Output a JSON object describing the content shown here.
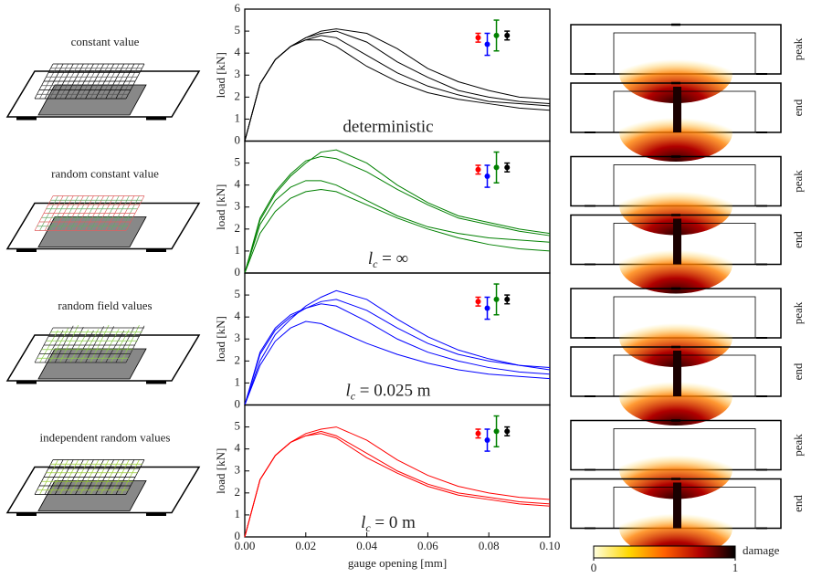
{
  "chart_data": [
    {
      "type": "line",
      "title": "constant value",
      "annotation_parts": [
        "deterministic"
      ],
      "ylabel": "load [kN]",
      "xlim": [
        0,
        0.1
      ],
      "ylim": [
        0,
        6
      ],
      "yticks": [
        0,
        1,
        2,
        3,
        4,
        5,
        6
      ],
      "x": [
        0,
        0.005,
        0.01,
        0.015,
        0.02,
        0.025,
        0.03,
        0.04,
        0.05,
        0.06,
        0.07,
        0.08,
        0.09,
        0.1
      ],
      "series": [
        {
          "color": "#000000",
          "values": [
            0,
            2.6,
            3.7,
            4.3,
            4.6,
            4.8,
            4.7,
            3.9,
            3.1,
            2.5,
            2.1,
            1.8,
            1.7,
            1.6
          ]
        },
        {
          "color": "#000000",
          "values": [
            0,
            2.6,
            3.7,
            4.3,
            4.7,
            4.9,
            5.0,
            4.5,
            3.6,
            2.9,
            2.3,
            2.0,
            1.8,
            1.7
          ]
        },
        {
          "color": "#000000",
          "values": [
            0,
            2.6,
            3.7,
            4.3,
            4.6,
            4.6,
            4.3,
            3.4,
            2.7,
            2.2,
            1.9,
            1.7,
            1.5,
            1.4
          ]
        },
        {
          "color": "#000000",
          "values": [
            0,
            2.6,
            3.7,
            4.3,
            4.7,
            5.0,
            5.1,
            4.9,
            4.2,
            3.3,
            2.7,
            2.3,
            2.0,
            1.9
          ]
        }
      ],
      "error_bars": [
        {
          "color": "#ff0000",
          "x": 0.0765,
          "value": 4.7,
          "error": 0.2
        },
        {
          "color": "#0000ff",
          "x": 0.0795,
          "value": 4.4,
          "error": 0.5
        },
        {
          "color": "#008000",
          "x": 0.0825,
          "value": 4.8,
          "error": 0.7
        },
        {
          "color": "#000000",
          "x": 0.086,
          "value": 4.8,
          "error": 0.2
        }
      ],
      "damage_maps": [
        {
          "label": "peak"
        },
        {
          "label": "end"
        }
      ]
    },
    {
      "type": "line",
      "title": "random constant value",
      "annotation_parts": [
        "l",
        "c",
        " = ∞"
      ],
      "ylabel": "load [kN]",
      "xlim": [
        0,
        0.1
      ],
      "ylim": [
        0,
        6
      ],
      "yticks": [
        0,
        1,
        2,
        3,
        4,
        5
      ],
      "x": [
        0,
        0.005,
        0.01,
        0.015,
        0.02,
        0.025,
        0.03,
        0.04,
        0.05,
        0.06,
        0.07,
        0.08,
        0.09,
        0.1
      ],
      "series": [
        {
          "color": "#008000",
          "values": [
            0,
            2.4,
            3.6,
            4.4,
            5.0,
            5.5,
            5.6,
            5.0,
            4.0,
            3.2,
            2.6,
            2.3,
            2.0,
            1.8
          ]
        },
        {
          "color": "#008000",
          "values": [
            0,
            2.2,
            3.3,
            3.9,
            4.2,
            4.2,
            4.0,
            3.3,
            2.6,
            2.1,
            1.8,
            1.6,
            1.5,
            1.4
          ]
        },
        {
          "color": "#008000",
          "values": [
            0,
            2.5,
            3.7,
            4.5,
            5.1,
            5.3,
            5.2,
            4.6,
            3.8,
            3.1,
            2.5,
            2.2,
            1.9,
            1.7
          ]
        },
        {
          "color": "#008000",
          "values": [
            0,
            1.8,
            2.8,
            3.4,
            3.7,
            3.8,
            3.7,
            3.1,
            2.5,
            2.0,
            1.6,
            1.3,
            1.1,
            1.0
          ]
        }
      ],
      "error_bars": [
        {
          "color": "#ff0000",
          "x": 0.0765,
          "value": 4.7,
          "error": 0.2
        },
        {
          "color": "#0000ff",
          "x": 0.0795,
          "value": 4.4,
          "error": 0.5
        },
        {
          "color": "#008000",
          "x": 0.0825,
          "value": 4.8,
          "error": 0.7
        },
        {
          "color": "#000000",
          "x": 0.086,
          "value": 4.8,
          "error": 0.2
        }
      ],
      "damage_maps": [
        {
          "label": "peak"
        },
        {
          "label": "end"
        }
      ]
    },
    {
      "type": "line",
      "title": "random field values",
      "annotation_parts": [
        "l",
        "c",
        " = 0.025 m"
      ],
      "ylabel": "load [kN]",
      "xlim": [
        0,
        0.1
      ],
      "ylim": [
        0,
        6
      ],
      "yticks": [
        0,
        1,
        2,
        3,
        4,
        5
      ],
      "x": [
        0,
        0.005,
        0.01,
        0.015,
        0.02,
        0.025,
        0.03,
        0.04,
        0.05,
        0.06,
        0.07,
        0.08,
        0.09,
        0.1
      ],
      "series": [
        {
          "color": "#0000ff",
          "values": [
            0,
            2.4,
            3.5,
            4.1,
            4.4,
            4.6,
            4.5,
            3.8,
            3.0,
            2.4,
            2.0,
            1.7,
            1.5,
            1.4
          ]
        },
        {
          "color": "#0000ff",
          "values": [
            0,
            2.0,
            3.2,
            3.9,
            4.5,
            4.9,
            5.2,
            4.8,
            3.9,
            3.1,
            2.5,
            2.1,
            1.8,
            1.7
          ]
        },
        {
          "color": "#0000ff",
          "values": [
            0,
            1.8,
            2.9,
            3.5,
            3.8,
            3.7,
            3.4,
            2.8,
            2.3,
            1.9,
            1.6,
            1.4,
            1.3,
            1.2
          ]
        },
        {
          "color": "#0000ff",
          "values": [
            0,
            2.3,
            3.4,
            4.0,
            4.4,
            4.7,
            4.8,
            4.3,
            3.5,
            2.8,
            2.3,
            2.0,
            1.8,
            1.6
          ]
        }
      ],
      "error_bars": [
        {
          "color": "#ff0000",
          "x": 0.0765,
          "value": 4.7,
          "error": 0.2
        },
        {
          "color": "#0000ff",
          "x": 0.0795,
          "value": 4.4,
          "error": 0.5
        },
        {
          "color": "#008000",
          "x": 0.0825,
          "value": 4.8,
          "error": 0.7
        },
        {
          "color": "#000000",
          "x": 0.086,
          "value": 4.8,
          "error": 0.2
        }
      ],
      "damage_maps": [
        {
          "label": "peak"
        },
        {
          "label": "end"
        }
      ]
    },
    {
      "type": "line",
      "title": "independent random values",
      "annotation_parts": [
        "l",
        "c",
        " = 0 m"
      ],
      "ylabel": "load [kN]",
      "xlabel": "gauge opening [mm]",
      "xlim": [
        0,
        0.1
      ],
      "ylim": [
        0,
        6
      ],
      "yticks": [
        0,
        1,
        2,
        3,
        4,
        5
      ],
      "xticks": [
        {
          "value": 0,
          "label": "0.00"
        },
        {
          "value": 0.02,
          "label": "0.02"
        },
        {
          "value": 0.04,
          "label": "0.04"
        },
        {
          "value": 0.06,
          "label": "0.06"
        },
        {
          "value": 0.08,
          "label": "0.08"
        },
        {
          "value": 0.1,
          "label": "0.10"
        }
      ],
      "x": [
        0,
        0.005,
        0.01,
        0.015,
        0.02,
        0.025,
        0.03,
        0.04,
        0.05,
        0.06,
        0.07,
        0.08,
        0.09,
        0.1
      ],
      "series": [
        {
          "color": "#ff0000",
          "values": [
            0,
            2.6,
            3.7,
            4.3,
            4.6,
            4.8,
            4.6,
            3.8,
            3.0,
            2.4,
            2.0,
            1.8,
            1.6,
            1.5
          ]
        },
        {
          "color": "#ff0000",
          "values": [
            0,
            2.6,
            3.7,
            4.3,
            4.7,
            4.9,
            5.0,
            4.4,
            3.5,
            2.8,
            2.3,
            2.0,
            1.8,
            1.7
          ]
        },
        {
          "color": "#ff0000",
          "values": [
            0,
            2.6,
            3.7,
            4.3,
            4.6,
            4.7,
            4.5,
            3.6,
            2.9,
            2.3,
            1.9,
            1.7,
            1.5,
            1.4
          ]
        }
      ],
      "error_bars": [
        {
          "color": "#ff0000",
          "x": 0.0765,
          "value": 4.7,
          "error": 0.2
        },
        {
          "color": "#0000ff",
          "x": 0.0795,
          "value": 4.4,
          "error": 0.5
        },
        {
          "color": "#008000",
          "x": 0.0825,
          "value": 4.8,
          "error": 0.7
        },
        {
          "color": "#000000",
          "x": 0.086,
          "value": 4.8,
          "error": 0.2
        }
      ],
      "damage_maps": [
        {
          "label": "peak"
        },
        {
          "label": "end"
        }
      ]
    }
  ],
  "colorbar": {
    "label": "damage",
    "lim": [
      0,
      1
    ],
    "ticks": [
      0,
      1
    ],
    "colors": [
      "#ffffe0",
      "#ffd700",
      "#ff6000",
      "#b00000",
      "#000000"
    ]
  }
}
